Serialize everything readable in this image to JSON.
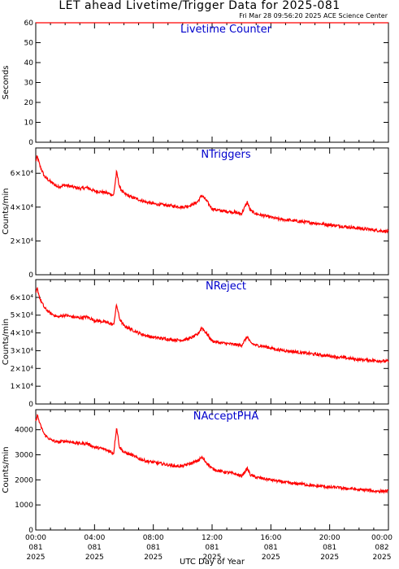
{
  "header": {
    "title": "LET ahead Livetime/Trigger Data for 2025-081",
    "timestamp": "Fri Mar 28 09:56:20 2025 ACE Science Center"
  },
  "colors": {
    "series": "#ff0000",
    "panel_title": "#0000cc",
    "axis": "#000000"
  },
  "chart_data": [
    {
      "type": "line",
      "title": "Livetime Counter",
      "ylabel": "Seconds",
      "ylim": [
        0,
        60
      ],
      "yticks": [
        0,
        10,
        20,
        30,
        40,
        50,
        60
      ],
      "ytick_labels": [
        "0",
        "10",
        "20",
        "30",
        "40",
        "50",
        "60"
      ],
      "x": [
        0,
        24
      ],
      "series": [
        {
          "values": [
            60,
            60
          ]
        }
      ]
    },
    {
      "type": "line",
      "title": "NTriggers",
      "ylabel": "Counts/min",
      "ylim": [
        0,
        75000
      ],
      "yticks": [
        0,
        20000,
        40000,
        60000
      ],
      "ytick_labels": [
        "0",
        "2×10⁴",
        "4×10⁴",
        "6×10⁴"
      ],
      "x": [
        0,
        0.1,
        0.3,
        0.6,
        1.0,
        1.5,
        2.0,
        2.5,
        3.0,
        3.5,
        4.0,
        4.5,
        5.0,
        5.3,
        5.5,
        5.7,
        6.0,
        6.5,
        7.0,
        7.5,
        8.0,
        8.5,
        9.0,
        9.5,
        10.0,
        10.5,
        11.0,
        11.3,
        11.6,
        12.0,
        12.5,
        13.0,
        13.5,
        14.0,
        14.4,
        14.6,
        15.0,
        15.5,
        16.0,
        16.5,
        17.0,
        17.5,
        18.0,
        18.5,
        19.0,
        19.5,
        20.0,
        20.5,
        21.0,
        21.5,
        22.0,
        22.5,
        23.0,
        23.5,
        24.0
      ],
      "series": [
        {
          "values": [
            67000,
            70000,
            64000,
            58000,
            55000,
            52000,
            53000,
            52000,
            51000,
            51500,
            49500,
            49000,
            48000,
            47000,
            61000,
            52000,
            48000,
            46000,
            44500,
            43000,
            42000,
            41500,
            41000,
            40500,
            40000,
            41000,
            43000,
            47000,
            44000,
            39000,
            38000,
            37500,
            37000,
            36000,
            43000,
            38000,
            36000,
            35000,
            34000,
            33000,
            32500,
            32000,
            31500,
            31000,
            30500,
            30000,
            29500,
            29000,
            28500,
            28000,
            27500,
            27000,
            26500,
            26000,
            25500
          ]
        }
      ]
    },
    {
      "type": "line",
      "title": "NReject",
      "ylabel": "Counts/min",
      "ylim": [
        0,
        70000
      ],
      "yticks": [
        0,
        10000,
        20000,
        30000,
        40000,
        50000,
        60000
      ],
      "ytick_labels": [
        "0",
        "1×10⁴",
        "2×10⁴",
        "3×10⁴",
        "4×10⁴",
        "5×10⁴",
        "6×10⁴"
      ],
      "x": [
        0,
        0.1,
        0.3,
        0.6,
        1.0,
        1.5,
        2.0,
        2.5,
        3.0,
        3.5,
        4.0,
        4.5,
        5.0,
        5.3,
        5.5,
        5.7,
        6.0,
        6.5,
        7.0,
        7.5,
        8.0,
        8.5,
        9.0,
        9.5,
        10.0,
        10.5,
        11.0,
        11.3,
        11.6,
        12.0,
        12.5,
        13.0,
        13.5,
        14.0,
        14.4,
        14.6,
        15.0,
        15.5,
        16.0,
        16.5,
        17.0,
        17.5,
        18.0,
        18.5,
        19.0,
        19.5,
        20.0,
        20.5,
        21.0,
        21.5,
        22.0,
        22.5,
        23.0,
        23.5,
        24.0
      ],
      "series": [
        {
          "values": [
            62000,
            65000,
            59000,
            54000,
            51000,
            49000,
            50000,
            49000,
            48500,
            49000,
            47000,
            46500,
            45500,
            44500,
            56000,
            48000,
            44000,
            42000,
            40000,
            38500,
            37500,
            37000,
            36500,
            36000,
            36000,
            37000,
            39000,
            43000,
            40000,
            35500,
            34500,
            34000,
            33500,
            33000,
            38000,
            34500,
            33000,
            32500,
            31500,
            30500,
            30000,
            29500,
            29000,
            28500,
            28000,
            27500,
            27000,
            26500,
            26000,
            25500,
            25000,
            24800,
            24500,
            24200,
            24000
          ]
        }
      ]
    },
    {
      "type": "line",
      "title": "NAcceptPHA",
      "ylabel": "Counts/min",
      "ylim": [
        0,
        4800
      ],
      "yticks": [
        0,
        1000,
        2000,
        3000,
        4000
      ],
      "ytick_labels": [
        "0",
        "1000",
        "2000",
        "3000",
        "4000"
      ],
      "x": [
        0,
        0.1,
        0.3,
        0.6,
        1.0,
        1.5,
        2.0,
        2.5,
        3.0,
        3.5,
        4.0,
        4.5,
        5.0,
        5.3,
        5.5,
        5.7,
        6.0,
        6.5,
        7.0,
        7.5,
        8.0,
        8.5,
        9.0,
        9.5,
        10.0,
        10.5,
        11.0,
        11.3,
        11.6,
        12.0,
        12.5,
        13.0,
        13.5,
        14.0,
        14.4,
        14.6,
        15.0,
        15.5,
        16.0,
        16.5,
        17.0,
        17.5,
        18.0,
        18.5,
        19.0,
        19.5,
        20.0,
        20.5,
        21.0,
        21.5,
        22.0,
        22.5,
        23.0,
        23.5,
        24.0
      ],
      "series": [
        {
          "values": [
            4300,
            4600,
            4200,
            3800,
            3600,
            3500,
            3550,
            3500,
            3450,
            3450,
            3300,
            3250,
            3150,
            3050,
            4100,
            3300,
            3100,
            3000,
            2850,
            2750,
            2700,
            2650,
            2600,
            2550,
            2550,
            2650,
            2750,
            2900,
            2700,
            2450,
            2350,
            2300,
            2250,
            2150,
            2450,
            2200,
            2100,
            2050,
            2000,
            1950,
            1900,
            1850,
            1850,
            1800,
            1750,
            1750,
            1700,
            1700,
            1650,
            1650,
            1600,
            1600,
            1550,
            1550,
            1550
          ]
        }
      ]
    }
  ],
  "x_axis": {
    "label": "UTC Day of Year",
    "xlim": [
      0,
      24
    ],
    "ticks": [
      {
        "x": 0,
        "lines": [
          "00:00",
          "081",
          "2025"
        ]
      },
      {
        "x": 4,
        "lines": [
          "04:00",
          "081",
          "2025"
        ]
      },
      {
        "x": 8,
        "lines": [
          "08:00",
          "081",
          "2025"
        ]
      },
      {
        "x": 12,
        "lines": [
          "12:00",
          "081",
          "2025"
        ]
      },
      {
        "x": 16,
        "lines": [
          "16:00",
          "081",
          "2025"
        ]
      },
      {
        "x": 20,
        "lines": [
          "20:00",
          "081",
          "2025"
        ]
      },
      {
        "x": 24,
        "lines": [
          "00:00",
          "082",
          "2025"
        ]
      }
    ],
    "minor_step": 1
  }
}
